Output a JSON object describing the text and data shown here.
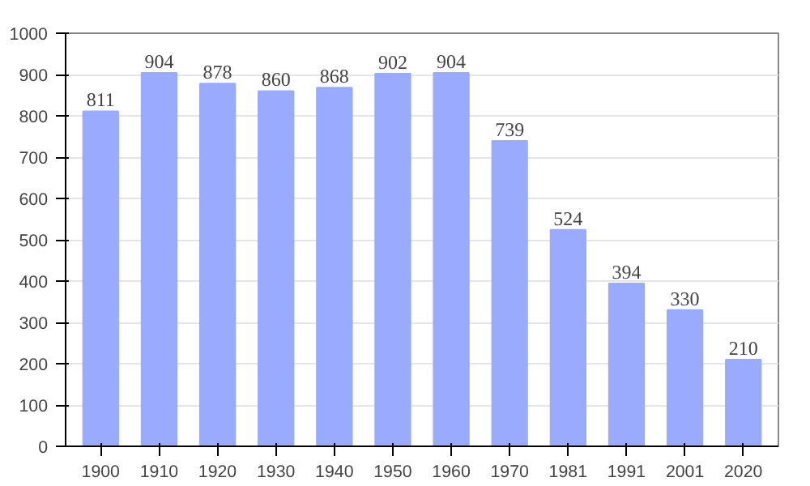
{
  "chart_data": {
    "type": "bar",
    "categories": [
      "1900",
      "1910",
      "1920",
      "1930",
      "1940",
      "1950",
      "1960",
      "1970",
      "1981",
      "1991",
      "2001",
      "2020"
    ],
    "values": [
      811,
      904,
      878,
      860,
      868,
      902,
      904,
      739,
      524,
      394,
      330,
      210
    ],
    "color": "#99aaff",
    "ylim": [
      0,
      1000
    ],
    "yticks": [
      0,
      100,
      200,
      300,
      400,
      500,
      600,
      700,
      800,
      900,
      1000
    ],
    "grid": "y",
    "data_labels": true
  }
}
